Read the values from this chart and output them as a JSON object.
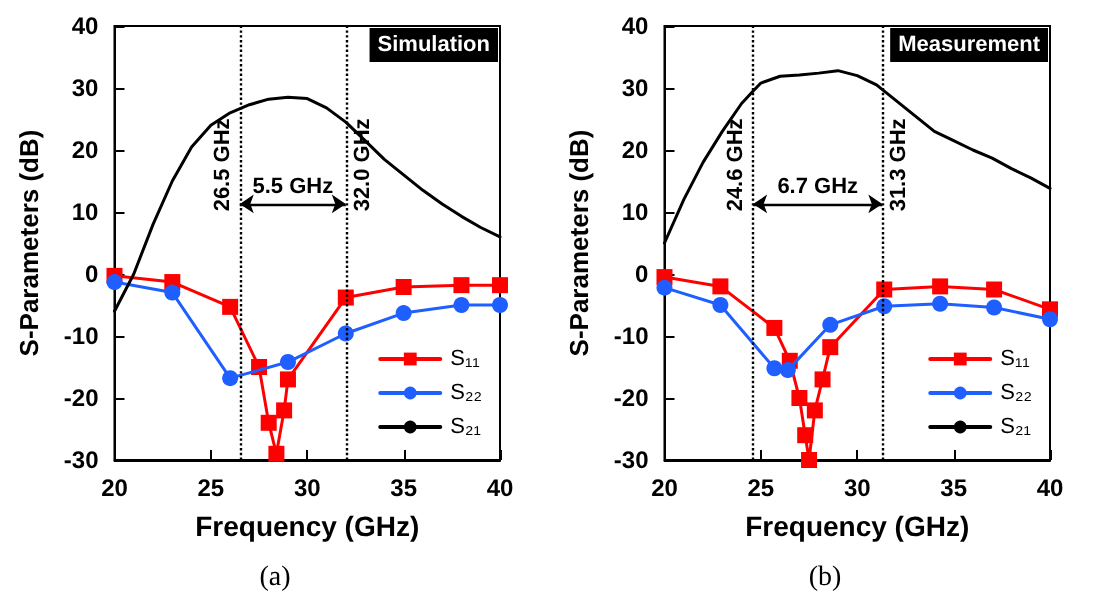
{
  "chart_data": [
    {
      "type": "line",
      "title": "Simulation",
      "xlabel": "Frequency (GHz)",
      "ylabel": "S-Parameters (dB)",
      "xlim": [
        20,
        40
      ],
      "xticks": [
        20,
        25,
        30,
        35,
        40
      ],
      "ylim": [
        -30,
        40
      ],
      "yticks": [
        -30,
        -20,
        -10,
        0,
        10,
        20,
        30,
        40
      ],
      "grid": false,
      "legend": "bottom right",
      "line_style": "solid",
      "series": [
        {
          "name": "S₁₁",
          "color": "#ff0000",
          "marker": "square",
          "x": [
            20,
            23,
            26,
            27.5,
            28,
            28.4,
            28.8,
            29,
            32,
            35,
            38,
            40
          ],
          "values": [
            -0.3,
            -1.3,
            -5.3,
            -15,
            -24,
            -29,
            -22,
            -17,
            -3.8,
            -2.1,
            -1.8,
            -1.8
          ]
        },
        {
          "name": "S₂₂",
          "color": "#1f5fff",
          "marker": "circle",
          "x": [
            20,
            23,
            26,
            29,
            32,
            35,
            38,
            40
          ],
          "values": [
            -1.3,
            -3.0,
            -16.8,
            -14.2,
            -9.6,
            -6.3,
            -5.0,
            -5.0
          ]
        },
        {
          "name": "S₂₁",
          "color": "#000000",
          "marker": "none",
          "x": [
            20,
            21,
            22,
            23,
            24,
            25,
            26,
            27,
            28,
            29,
            30,
            31,
            32,
            33,
            34,
            35,
            36,
            37,
            38,
            39,
            40
          ],
          "values": [
            -6,
            0,
            8,
            15,
            20.5,
            24,
            26,
            27.3,
            28.2,
            28.5,
            28.3,
            26.8,
            24.5,
            21.5,
            18.5,
            16,
            13.5,
            11.3,
            9.3,
            7.5,
            6
          ]
        }
      ],
      "ref_lines": [
        {
          "axis": "x",
          "value": 26.5,
          "label": "26.5 GHz",
          "color": "#000000",
          "line_style": "dotted"
        },
        {
          "axis": "x",
          "value": 32.0,
          "label": "32.0 GHz",
          "color": "#000000",
          "line_style": "dotted"
        }
      ],
      "annotations": [
        "5.5 GHz",
        "(a)"
      ]
    },
    {
      "type": "line",
      "title": "Measurement",
      "xlabel": "Frequency (GHz)",
      "ylabel": "S-Parameters (dB)",
      "xlim": [
        20,
        40
      ],
      "xticks": [
        20,
        25,
        30,
        35,
        40
      ],
      "ylim": [
        -30,
        40
      ],
      "yticks": [
        -30,
        -20,
        -10,
        0,
        10,
        20,
        30,
        40
      ],
      "grid": false,
      "legend": "bottom right",
      "line_style": "solid",
      "series": [
        {
          "name": "S₁₁",
          "color": "#ff0000",
          "marker": "square",
          "x": [
            20,
            22.9,
            25.7,
            26.5,
            27,
            27.3,
            27.5,
            27.8,
            28.2,
            28.6,
            31.4,
            34.3,
            37.1,
            40
          ],
          "values": [
            -0.5,
            -2.0,
            -8.7,
            -14,
            -20,
            -26,
            -30,
            -22,
            -17,
            -11.8,
            -2.5,
            -2.0,
            -2.5,
            -5.7
          ]
        },
        {
          "name": "S₂₂",
          "color": "#1f5fff",
          "marker": "circle",
          "x": [
            20,
            22.9,
            25.7,
            26.4,
            28.6,
            31.4,
            34.3,
            37.1,
            40
          ],
          "values": [
            -2.2,
            -5.0,
            -15.2,
            -15.5,
            -8.2,
            -5.2,
            -4.8,
            -5.4,
            -7.3
          ]
        },
        {
          "name": "S₂₁",
          "color": "#000000",
          "marker": "none",
          "x": [
            20,
            21,
            22,
            23,
            24,
            24.6,
            25,
            26,
            27,
            28,
            29,
            30,
            31,
            32,
            33,
            34,
            35,
            36,
            37,
            38,
            39,
            40
          ],
          "values": [
            5,
            12,
            18,
            23,
            27.5,
            29.5,
            30.8,
            31.9,
            32.1,
            32.4,
            32.8,
            32,
            30.5,
            28,
            25.5,
            23,
            21.5,
            20,
            18.7,
            17,
            15.5,
            13.8
          ]
        }
      ],
      "ref_lines": [
        {
          "axis": "x",
          "value": 24.6,
          "label": "24.6 GHz",
          "color": "#000000",
          "line_style": "dotted"
        },
        {
          "axis": "x",
          "value": 31.3,
          "label": "31.3 GHz",
          "color": "#000000",
          "line_style": "dotted"
        }
      ],
      "annotations": [
        "6.7 GHz",
        "(b)"
      ]
    }
  ]
}
